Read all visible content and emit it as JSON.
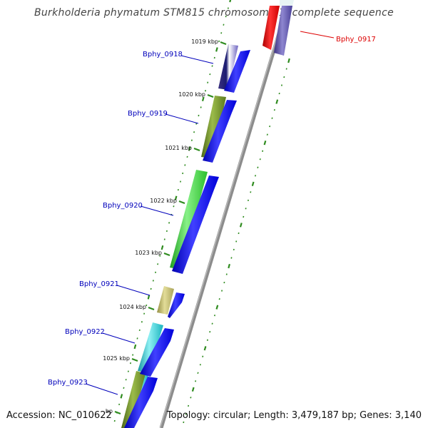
{
  "title": "Burkholderia phymatum STM815 chromosome 1, complete sequence",
  "accession": "Accession: NC_010622",
  "summary": "Topology: circular; Length: 3,479,187 bp; Genes: 3,140",
  "ticks": [
    {
      "label": "1019 kbp"
    },
    {
      "label": "1020 kbp"
    },
    {
      "label": "1021 kbp"
    },
    {
      "label": "1022 kbp"
    },
    {
      "label": "1023 kbp"
    },
    {
      "label": "1024 kbp"
    },
    {
      "label": "1025 kbp"
    },
    {
      "label": "bp"
    }
  ],
  "genes": [
    {
      "name": "Bphy_0917",
      "color": "#dd0000"
    },
    {
      "name": "Bphy_0918",
      "color": "#0000bb"
    },
    {
      "name": "Bphy_0919",
      "color": "#0000bb"
    },
    {
      "name": "Bphy_0920",
      "color": "#0000bb"
    },
    {
      "name": "Bphy_0921",
      "color": "#0000bb"
    },
    {
      "name": "Bphy_0922",
      "color": "#0000bb"
    },
    {
      "name": "Bphy_0923",
      "color": "#0000bb"
    }
  ],
  "colors": {
    "backbone": "#8c8c8c",
    "tick": "#2e8b1e",
    "cds_arrow": "#0000ff",
    "red_gene": "#ff0000",
    "purple_gene": "#5a4fa6",
    "olive_gene": "#6b8e23",
    "green_gene": "#32cd32",
    "khaki_gene": "#bdb76b",
    "cyan_gene": "#20c8d0"
  }
}
